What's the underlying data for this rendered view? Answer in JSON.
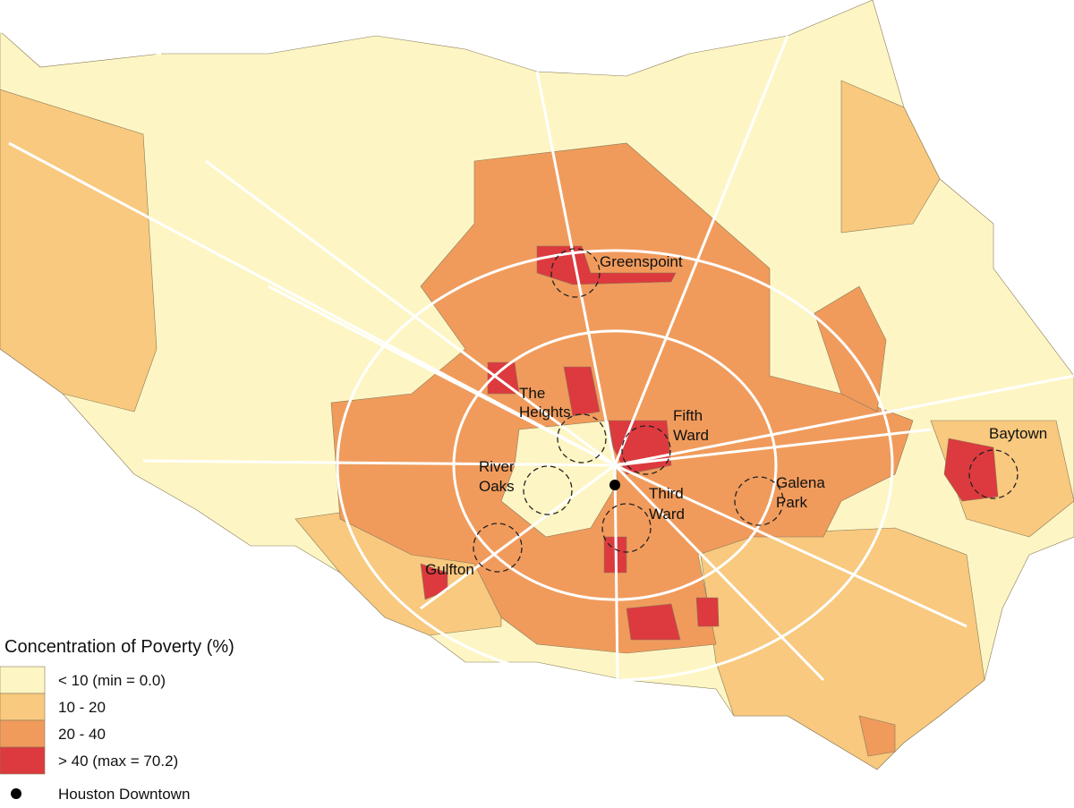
{
  "legend": {
    "title": "Concentration of Poverty (%)",
    "items": [
      {
        "label": "< 10 (min = 0.0)",
        "color": "#fdf6c4"
      },
      {
        "label": "10 - 20",
        "color": "#f8c97e"
      },
      {
        "label": "20 - 40",
        "color": "#f09b5c"
      },
      {
        "label": "> 40 (max = 70.2)",
        "color": "#dc3a3e"
      }
    ],
    "downtown": "Houston Downtown"
  },
  "labels": {
    "greenspoint": "Greenspoint",
    "heights": [
      "The",
      "Heights"
    ],
    "fifth_ward": [
      "Fifth",
      "Ward"
    ],
    "river_oaks": [
      "River",
      "Oaks"
    ],
    "third_ward": [
      "Third",
      "Ward"
    ],
    "galena_park": [
      "Galena",
      "Park"
    ],
    "baytown": "Baytown",
    "gulfton": "Gulfton"
  }
}
